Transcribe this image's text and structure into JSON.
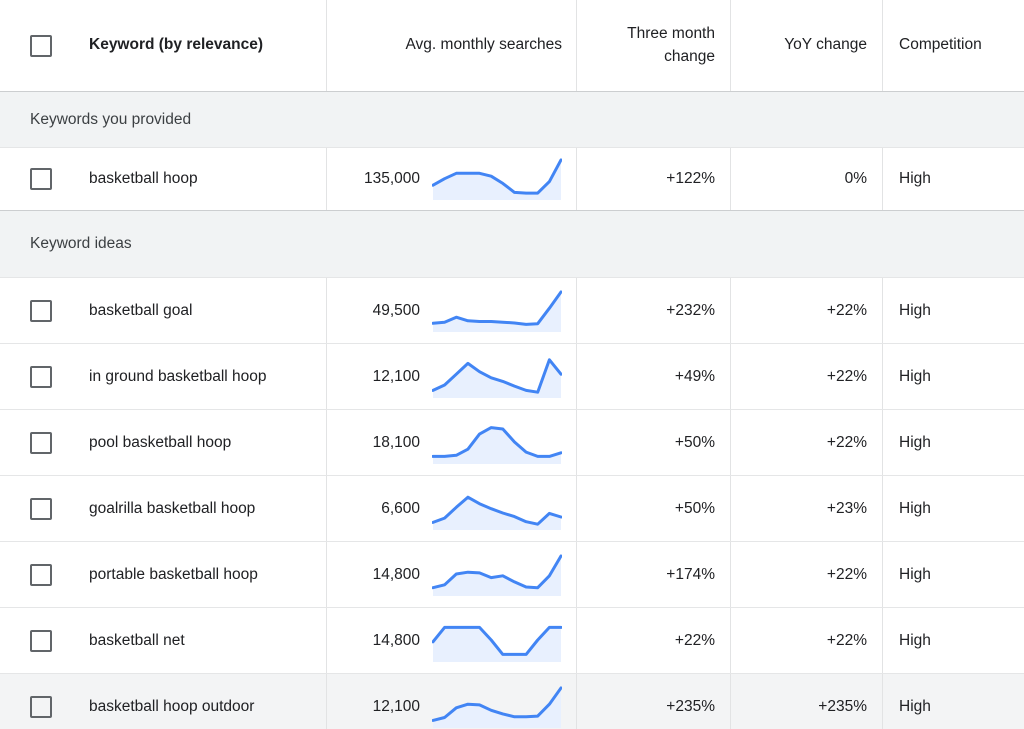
{
  "table": {
    "columns": [
      {
        "label": "Keyword (by relevance)"
      },
      {
        "label": "Avg. monthly searches"
      },
      {
        "label": "Three month change"
      },
      {
        "label": "YoY change"
      },
      {
        "label": "Competition"
      }
    ],
    "sections": [
      {
        "label": "Keywords you provided",
        "rows": [
          {
            "keyword": "basketball hoop",
            "avg_monthly_searches": "135,000",
            "three_month_change": "+122%",
            "yoy_change": "0%",
            "competition": "High"
          }
        ]
      },
      {
        "label": "Keyword ideas",
        "rows": [
          {
            "keyword": "basketball goal",
            "avg_monthly_searches": "49,500",
            "three_month_change": "+232%",
            "yoy_change": "+22%",
            "competition": "High"
          },
          {
            "keyword": "in ground basketball hoop",
            "avg_monthly_searches": "12,100",
            "three_month_change": "+49%",
            "yoy_change": "+22%",
            "competition": "High"
          },
          {
            "keyword": "pool basketball hoop",
            "avg_monthly_searches": "18,100",
            "three_month_change": "+50%",
            "yoy_change": "+22%",
            "competition": "High"
          },
          {
            "keyword": "goalrilla basketball hoop",
            "avg_monthly_searches": "6,600",
            "three_month_change": "+50%",
            "yoy_change": "+23%",
            "competition": "High"
          },
          {
            "keyword": "portable basketball hoop",
            "avg_monthly_searches": "14,800",
            "three_month_change": "+174%",
            "yoy_change": "+22%",
            "competition": "High"
          },
          {
            "keyword": "basketball net",
            "avg_monthly_searches": "14,800",
            "three_month_change": "+22%",
            "yoy_change": "+22%",
            "competition": "High"
          },
          {
            "keyword": "basketball hoop outdoor",
            "avg_monthly_searches": "12,100",
            "three_month_change": "+235%",
            "yoy_change": "+235%",
            "competition": "High",
            "highlighted": true
          }
        ]
      }
    ]
  },
  "chart_data": {
    "type": "line",
    "description": "12-month search-trend sparklines shown beside each avg. monthly searches value; values are normalized 0-1 (no axes or labels visible)",
    "legend_position": "none",
    "grid": false,
    "series": [
      {
        "name": "basketball hoop",
        "values": [
          0.3,
          0.48,
          0.63,
          0.63,
          0.63,
          0.55,
          0.35,
          0.1,
          0.08,
          0.08,
          0.4,
          1.0
        ]
      },
      {
        "name": "basketball goal",
        "values": [
          0.13,
          0.16,
          0.3,
          0.2,
          0.18,
          0.18,
          0.16,
          0.14,
          0.1,
          0.12,
          0.55,
          1.0
        ]
      },
      {
        "name": "in ground basketball hoop",
        "values": [
          0.1,
          0.25,
          0.55,
          0.85,
          0.62,
          0.45,
          0.35,
          0.22,
          0.1,
          0.05,
          0.95,
          0.55
        ]
      },
      {
        "name": "pool basketball hoop",
        "values": [
          0.1,
          0.1,
          0.13,
          0.3,
          0.72,
          0.9,
          0.86,
          0.5,
          0.22,
          0.1,
          0.1,
          0.2
        ]
      },
      {
        "name": "goalrilla basketball hoop",
        "values": [
          0.1,
          0.22,
          0.52,
          0.8,
          0.62,
          0.48,
          0.36,
          0.26,
          0.12,
          0.05,
          0.35,
          0.25
        ]
      },
      {
        "name": "portable basketball hoop",
        "values": [
          0.12,
          0.2,
          0.5,
          0.55,
          0.53,
          0.4,
          0.45,
          0.28,
          0.14,
          0.12,
          0.45,
          1.0
        ]
      },
      {
        "name": "basketball net",
        "values": [
          0.45,
          0.85,
          0.85,
          0.85,
          0.85,
          0.5,
          0.1,
          0.1,
          0.1,
          0.5,
          0.85,
          0.85
        ]
      },
      {
        "name": "basketball hoop outdoor",
        "values": [
          0.1,
          0.18,
          0.45,
          0.55,
          0.53,
          0.38,
          0.28,
          0.2,
          0.2,
          0.22,
          0.55,
          1.0
        ]
      }
    ]
  },
  "colors": {
    "sparkline_line": "#4285f4",
    "sparkline_fill": "#e8f0fe",
    "section_bg": "#f1f3f4",
    "row_highlight_bg": "#f3f4f5",
    "border_light": "#e5e6e7",
    "border_section_top": "#ccced0",
    "checkbox_border": "#616569",
    "text_primary": "#202124"
  }
}
